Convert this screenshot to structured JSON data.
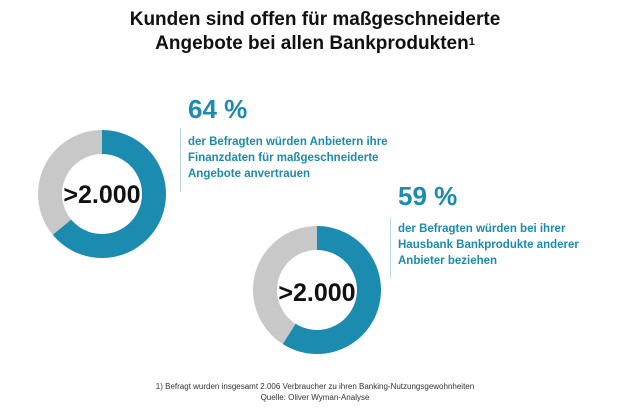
{
  "title_line1": "Kunden sind offen für maßgeschneiderte",
  "title_line2": "Angebote bei allen Bankprodukten",
  "title_footnote_marker": "1",
  "colors": {
    "accent": "#1b8bb0",
    "remainder": "#c8c8c8"
  },
  "chart_data": [
    {
      "type": "pie",
      "variant": "donut",
      "center_label": ">2.000",
      "slices": [
        {
          "label": "64 %",
          "value": 64,
          "color": "#1b8bb0"
        },
        {
          "value": 36,
          "color": "#c8c8c8"
        }
      ],
      "annotation": "der Befragten würden Anbietern ihre\nFinanzdaten für maßgeschneiderte\nAngebote anvertrauen"
    },
    {
      "type": "pie",
      "variant": "donut",
      "center_label": ">2.000",
      "slices": [
        {
          "label": "59 %",
          "value": 59,
          "color": "#1b8bb0"
        },
        {
          "value": 41,
          "color": "#c8c8c8"
        }
      ],
      "annotation": "der Befragten würden bei ihrer\nHausbank Bankprodukte anderer\nAnbieter beziehen"
    }
  ],
  "footnote": "1) Befragt wurden insgesamt 2.006 Verbraucher zu ihren Banking-Nutzungsgewohnheiten",
  "source": "Quelle: Oliver Wyman-Analyse"
}
